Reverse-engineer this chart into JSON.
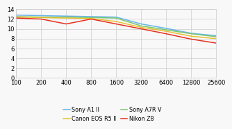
{
  "iso_values": [
    100,
    200,
    400,
    800,
    1600,
    3200,
    6400,
    12800,
    25600
  ],
  "series": [
    {
      "label": "Sony A1 II",
      "color": "#6ab4e8",
      "data": [
        12.8,
        12.7,
        12.6,
        12.5,
        12.4,
        11.0,
        10.1,
        9.1,
        8.6
      ]
    },
    {
      "label": "Sony A7R V",
      "color": "#7ac870",
      "data": [
        12.5,
        12.4,
        12.4,
        12.3,
        12.2,
        10.6,
        9.8,
        9.0,
        8.4
      ]
    },
    {
      "label": "Canon EOS R5 Ⅱ",
      "color": "#e8c030",
      "data": [
        12.4,
        12.3,
        12.2,
        12.1,
        11.5,
        10.3,
        9.5,
        8.5,
        8.0
      ]
    },
    {
      "label": "Nikon Z8",
      "color": "#e83020",
      "data": [
        12.2,
        12.0,
        11.0,
        12.0,
        11.0,
        10.0,
        9.0,
        7.9,
        7.1
      ]
    }
  ],
  "xlim_log": [
    100,
    25600
  ],
  "ylim": [
    0,
    14
  ],
  "yticks": [
    0,
    2,
    4,
    6,
    8,
    10,
    12,
    14
  ],
  "xtick_labels": [
    "100",
    "200",
    "400",
    "800",
    "1600",
    "3200",
    "6400",
    "12800",
    "25600"
  ],
  "background_color": "#f8f8f8",
  "grid_color": "#cccccc",
  "legend_fontsize": 5.8,
  "tick_fontsize": 6.0,
  "linewidth": 1.1
}
